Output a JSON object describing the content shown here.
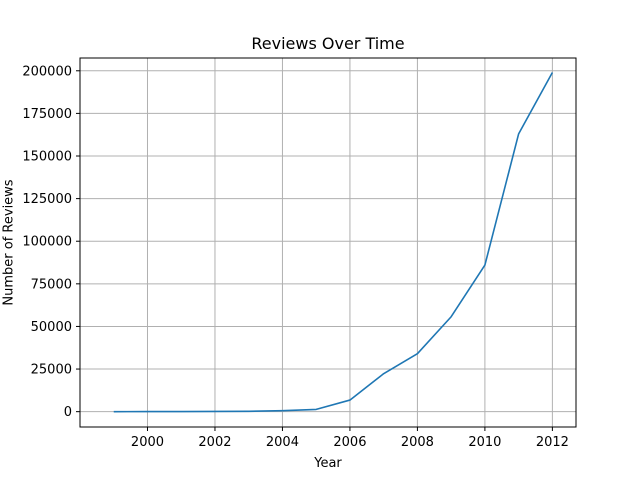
{
  "chart_data": {
    "type": "line",
    "title": "Reviews Over Time",
    "xlabel": "Year",
    "ylabel": "Number of Reviews",
    "xlim": [
      1998,
      2012.7
    ],
    "ylim": [
      -9000,
      207500
    ],
    "xticks": [
      2000,
      2002,
      2004,
      2006,
      2008,
      2010,
      2012
    ],
    "yticks": [
      0,
      25000,
      50000,
      75000,
      100000,
      125000,
      150000,
      175000,
      200000
    ],
    "grid": true,
    "series": [
      {
        "color": "#1f77b4",
        "x": [
          1999,
          2000,
          2001,
          2002,
          2003,
          2004,
          2005,
          2006,
          2007,
          2008,
          2009,
          2010,
          2011,
          2012
        ],
        "y": [
          6,
          32,
          73,
          108,
          222,
          561,
          1335,
          6800,
          22300,
          34000,
          55700,
          86000,
          163000,
          199000
        ]
      }
    ]
  }
}
